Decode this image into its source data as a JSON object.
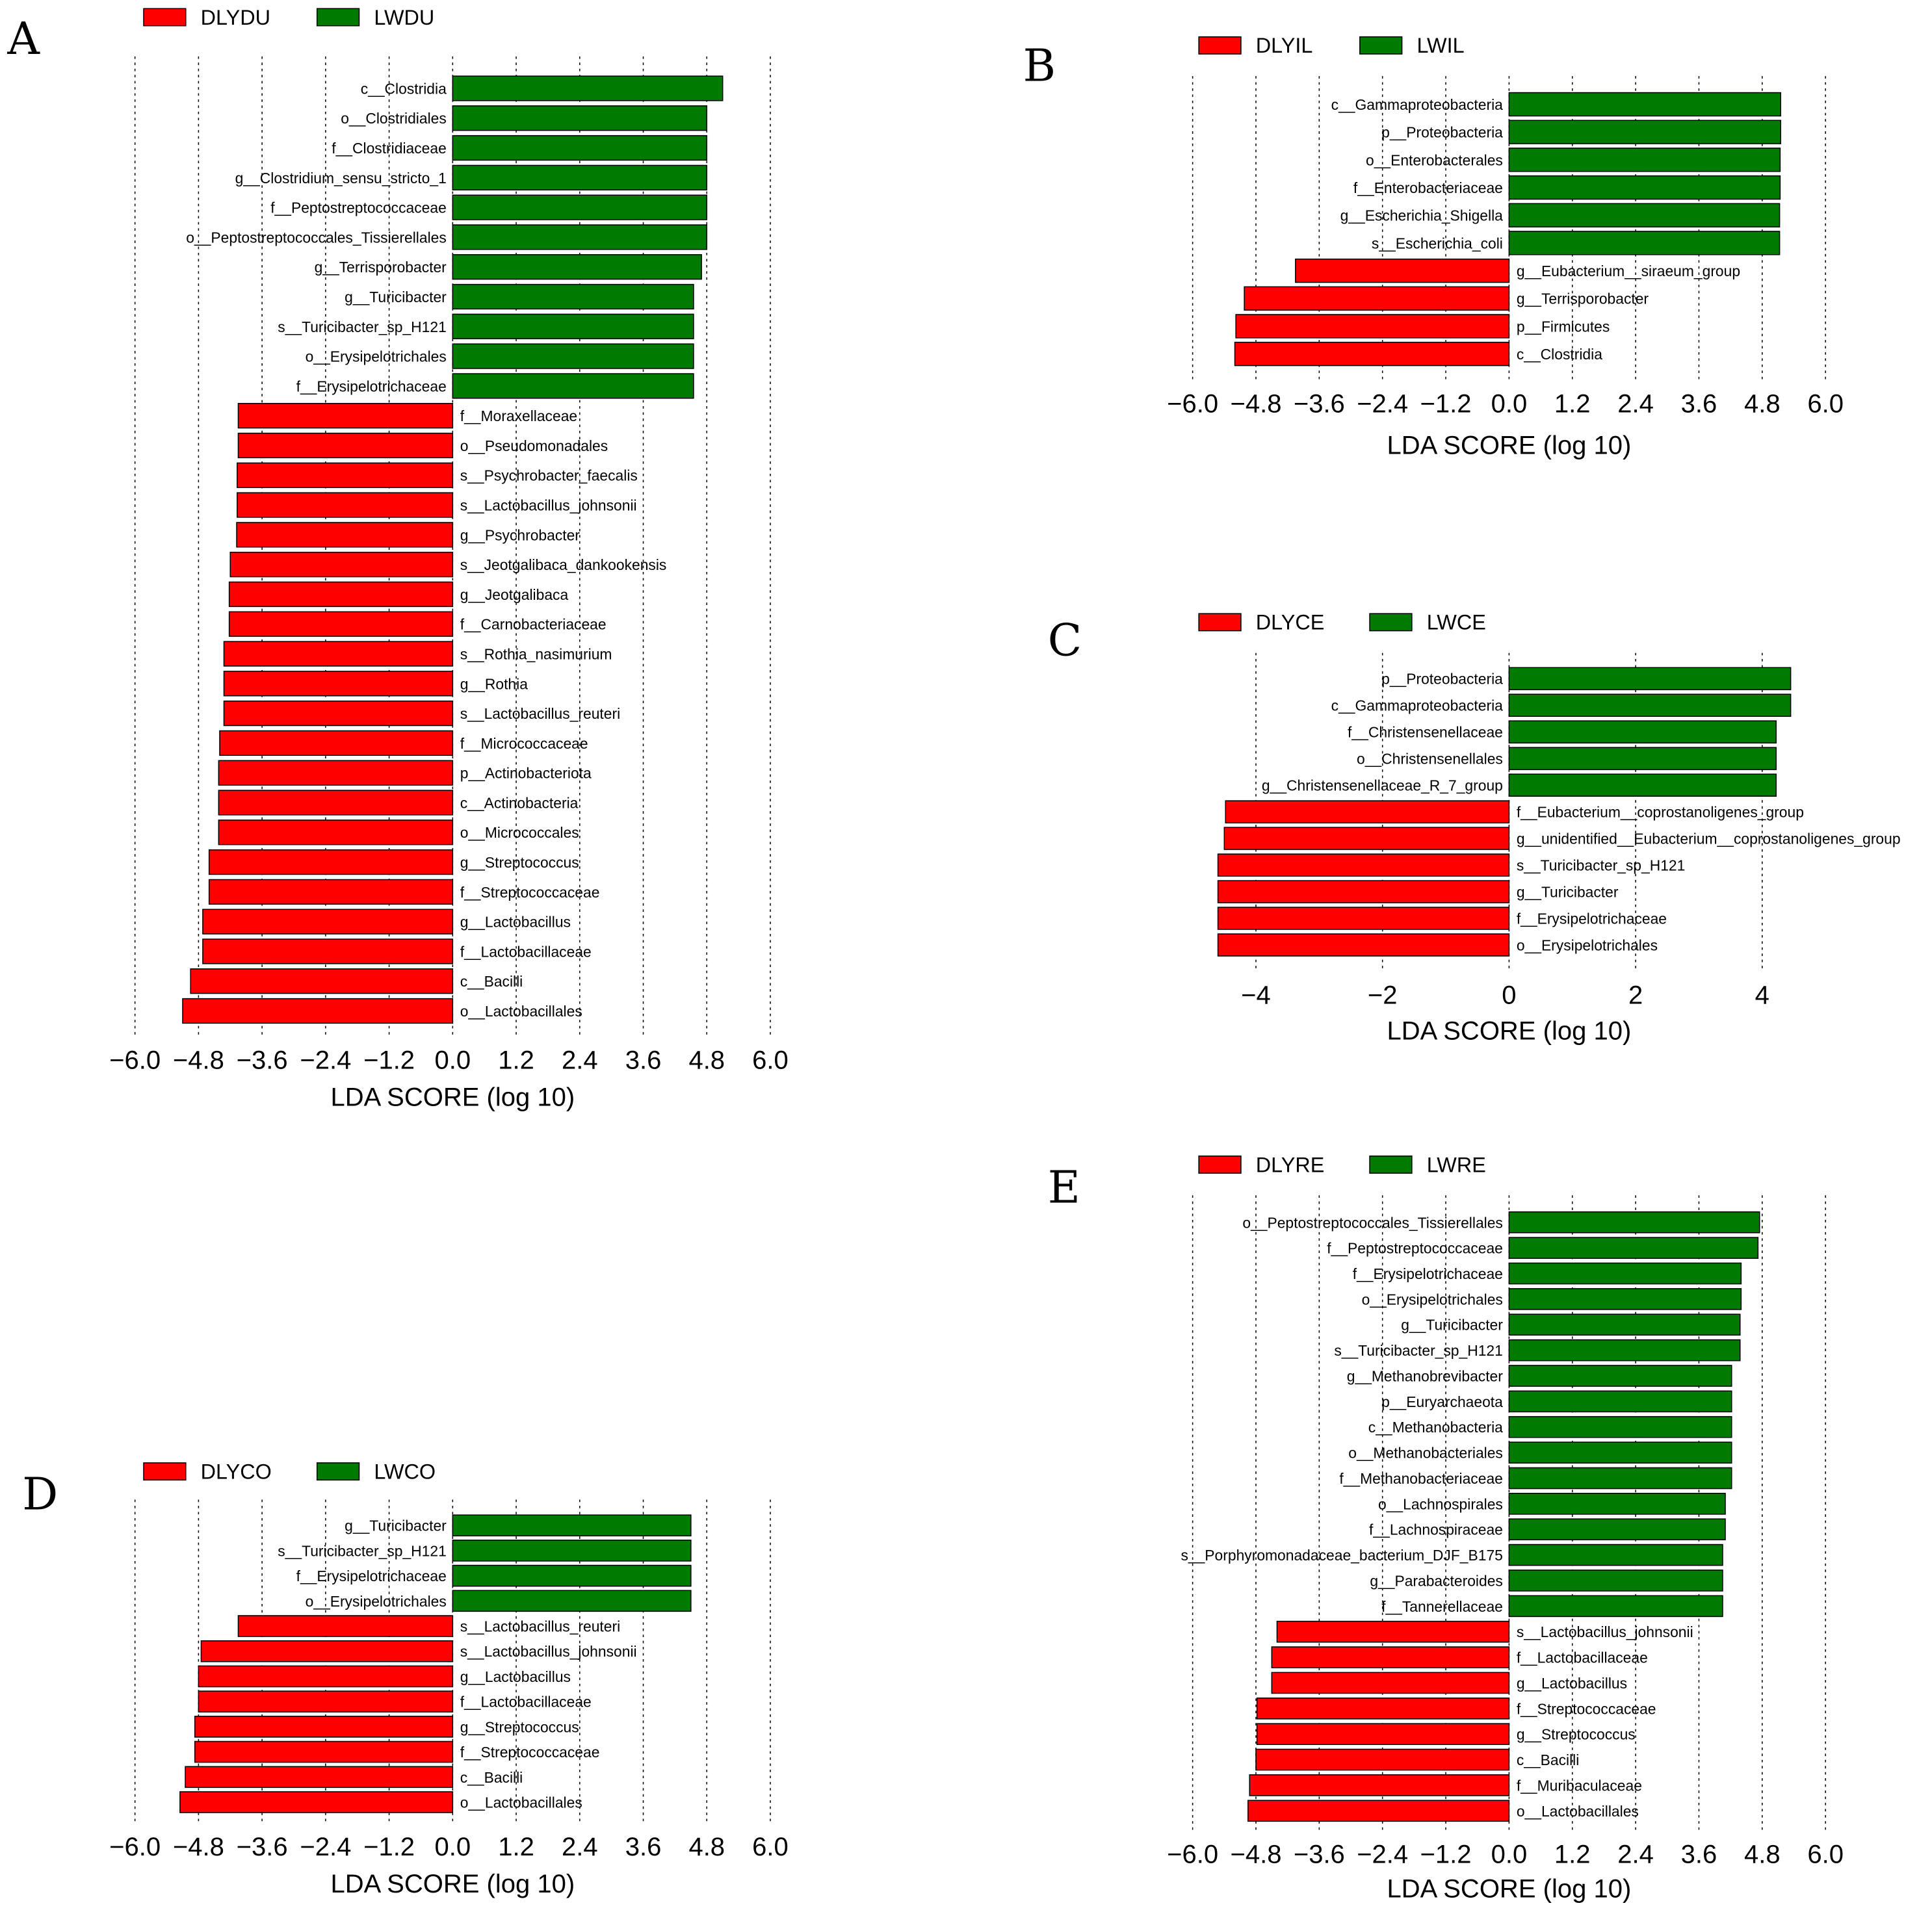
{
  "figure": {
    "colors": {
      "red": "#ff0000",
      "green": "#007a00"
    }
  },
  "chart_data": [
    {
      "panel": "A",
      "type": "bar",
      "orientation": "horizontal",
      "legend": [
        {
          "name": "DLYDU",
          "color": "#ff0000"
        },
        {
          "name": "LWDU",
          "color": "#007a00"
        }
      ],
      "xlabel": "LDA SCORE (log 10)",
      "xlim": [
        -6.0,
        6.0
      ],
      "xticks": [
        -6.0,
        -4.8,
        -3.6,
        -2.4,
        -1.2,
        0.0,
        1.2,
        2.4,
        3.6,
        4.8,
        6.0
      ],
      "xtick_labels": [
        "−6.0",
        "−4.8",
        "−3.6",
        "−2.4",
        "−1.2",
        "0.0",
        "1.2",
        "2.4",
        "3.6",
        "4.8",
        "6.0"
      ],
      "categories": [
        "c__Clostridia",
        "o__Clostridiales",
        "f__Clostridiaceae",
        "g__Clostridium_sensu_stricto_1",
        "f__Peptostreptococcaceae",
        "o__Peptostreptococcales_Tissierellales",
        "g__Terrisporobacter",
        "g__Turicibacter",
        "s__Turicibacter_sp_H121",
        "o__Erysipelotrichales",
        "f__Erysipelotrichaceae",
        "f__Moraxellaceae",
        "o__Pseudomonadales",
        "s__Psychrobacter_faecalis",
        "s__Lactobacillus_johnsonii",
        "g__Psychrobacter",
        "s__Jeotgalibaca_dankookensis",
        "g__Jeotgalibaca",
        "f__Carnobacteriaceae",
        "s__Rothia_nasimurium",
        "g__Rothia",
        "s__Lactobacillus_reuteri",
        "f__Micrococcaceae",
        "p__Actinobacteriota",
        "c__Actinobacteria",
        "o__Micrococcales",
        "g__Streptococcus",
        "f__Streptococcaceae",
        "g__Lactobacillus",
        "f__Lactobacillaceae",
        "c__Bacilli",
        "o__Lactobacillales"
      ],
      "values": [
        5.1,
        4.8,
        4.8,
        4.8,
        4.8,
        4.8,
        4.7,
        4.55,
        4.55,
        4.55,
        4.55,
        -4.05,
        -4.05,
        -4.07,
        -4.07,
        -4.08,
        -4.2,
        -4.22,
        -4.22,
        -4.32,
        -4.32,
        -4.32,
        -4.4,
        -4.42,
        -4.42,
        -4.42,
        -4.6,
        -4.6,
        -4.72,
        -4.72,
        -4.95,
        -5.1
      ]
    },
    {
      "panel": "B",
      "type": "bar",
      "orientation": "horizontal",
      "legend": [
        {
          "name": "DLYIL",
          "color": "#ff0000"
        },
        {
          "name": "LWIL",
          "color": "#007a00"
        }
      ],
      "xlabel": "LDA SCORE (log 10)",
      "xlim": [
        -6.0,
        6.0
      ],
      "xticks": [
        -6.0,
        -4.8,
        -3.6,
        -2.4,
        -1.2,
        0.0,
        1.2,
        2.4,
        3.6,
        4.8,
        6.0
      ],
      "xtick_labels": [
        "−6.0",
        "−4.8",
        "−3.6",
        "−2.4",
        "−1.2",
        "0.0",
        "1.2",
        "2.4",
        "3.6",
        "4.8",
        "6.0"
      ],
      "categories": [
        "c__Gammaproteobacteria",
        "p__Proteobacteria",
        "o__Enterobacterales",
        "f__Enterobacteriaceae",
        "g__Escherichia_Shigella",
        "s__Escherichia_coli",
        "g__Eubacterium__siraeum_group",
        "g__Terrisporobacter",
        "p__Firmicutes",
        "c__Clostridia"
      ],
      "values": [
        5.15,
        5.15,
        5.14,
        5.14,
        5.13,
        5.13,
        -4.05,
        -5.02,
        -5.18,
        -5.2
      ]
    },
    {
      "panel": "C",
      "type": "bar",
      "orientation": "horizontal",
      "legend": [
        {
          "name": "DLYCE",
          "color": "#ff0000"
        },
        {
          "name": "LWCE",
          "color": "#007a00"
        }
      ],
      "xlabel": "LDA SCORE (log 10)",
      "xlim": [
        -5.0,
        5.0
      ],
      "xticks": [
        -4,
        -2,
        0,
        2,
        4
      ],
      "xtick_labels": [
        "−4",
        "−2",
        "0",
        "2",
        "4"
      ],
      "categories": [
        "p__Proteobacteria",
        "c__Gammaproteobacteria",
        "f__Christensenellaceae",
        "o__Christensenellales",
        "g__Christensenellaceae_R_7_group",
        "f__Eubacterium__coprostanoligenes_group",
        "g__unidentified__Eubacterium__coprostanoligenes_group",
        "s__Turicibacter_sp_H121",
        "g__Turicibacter",
        "f__Erysipelotrichaceae",
        "o__Erysipelotrichales"
      ],
      "values": [
        4.45,
        4.45,
        4.22,
        4.22,
        4.22,
        -4.48,
        -4.5,
        -4.6,
        -4.6,
        -4.6,
        -4.6
      ]
    },
    {
      "panel": "D",
      "type": "bar",
      "orientation": "horizontal",
      "legend": [
        {
          "name": "DLYCO",
          "color": "#ff0000"
        },
        {
          "name": "LWCO",
          "color": "#007a00"
        }
      ],
      "xlabel": "LDA SCORE (log 10)",
      "xlim": [
        -6.0,
        6.0
      ],
      "xticks": [
        -6.0,
        -4.8,
        -3.6,
        -2.4,
        -1.2,
        0.0,
        1.2,
        2.4,
        3.6,
        4.8,
        6.0
      ],
      "xtick_labels": [
        "−6.0",
        "−4.8",
        "−3.6",
        "−2.4",
        "−1.2",
        "0.0",
        "1.2",
        "2.4",
        "3.6",
        "4.8",
        "6.0"
      ],
      "categories": [
        "g__Turicibacter",
        "s__Turicibacter_sp_H121",
        "f__Erysipelotrichaceae",
        "o__Erysipelotrichales",
        "s__Lactobacillus_reuteri",
        "s__Lactobacillus_johnsonii",
        "g__Lactobacillus",
        "f__Lactobacillaceae",
        "g__Streptococcus",
        "f__Streptococcaceae",
        "c__Bacilli",
        "o__Lactobacillales"
      ],
      "values": [
        4.5,
        4.5,
        4.5,
        4.5,
        -4.05,
        -4.75,
        -4.8,
        -4.8,
        -4.87,
        -4.87,
        -5.05,
        -5.15
      ]
    },
    {
      "panel": "E",
      "type": "bar",
      "orientation": "horizontal",
      "legend": [
        {
          "name": "DLYRE",
          "color": "#ff0000"
        },
        {
          "name": "LWRE",
          "color": "#007a00"
        }
      ],
      "xlabel": "LDA SCORE (log 10)",
      "xlim": [
        -6.0,
        6.0
      ],
      "xticks": [
        -6.0,
        -4.8,
        -3.6,
        -2.4,
        -1.2,
        0.0,
        1.2,
        2.4,
        3.6,
        4.8,
        6.0
      ],
      "xtick_labels": [
        "−6.0",
        "−4.8",
        "−3.6",
        "−2.4",
        "−1.2",
        "0.0",
        "1.2",
        "2.4",
        "3.6",
        "4.8",
        "6.0"
      ],
      "categories": [
        "o__Peptostreptococcales_Tissierellales",
        "f__Peptostreptococcaceae",
        "f__Erysipelotrichaceae",
        "o__Erysipelotrichales",
        "g__Turicibacter",
        "s__Turicibacter_sp_H121",
        "g__Methanobrevibacter",
        "p__Euryarchaeota",
        "c__Methanobacteria",
        "o__Methanobacteriales",
        "f__Methanobacteriaceae",
        "o__Lachnospirales",
        "f__Lachnospiraceae",
        "s__Porphyromonadaceae_bacterium_DJF_B175",
        "g__Parabacteroides",
        "f__Tannerellaceae",
        "s__Lactobacillus_johnsonii",
        "f__Lactobacillaceae",
        "g__Lactobacillus",
        "f__Streptococcaceae",
        "g__Streptococcus",
        "c__Bacilli",
        "f__Muribaculaceae",
        "o__Lactobacillales"
      ],
      "values": [
        4.75,
        4.72,
        4.4,
        4.4,
        4.38,
        4.38,
        4.22,
        4.22,
        4.22,
        4.22,
        4.22,
        4.1,
        4.1,
        4.05,
        4.05,
        4.05,
        -4.4,
        -4.5,
        -4.5,
        -4.78,
        -4.78,
        -4.8,
        -4.92,
        -4.95
      ]
    }
  ]
}
